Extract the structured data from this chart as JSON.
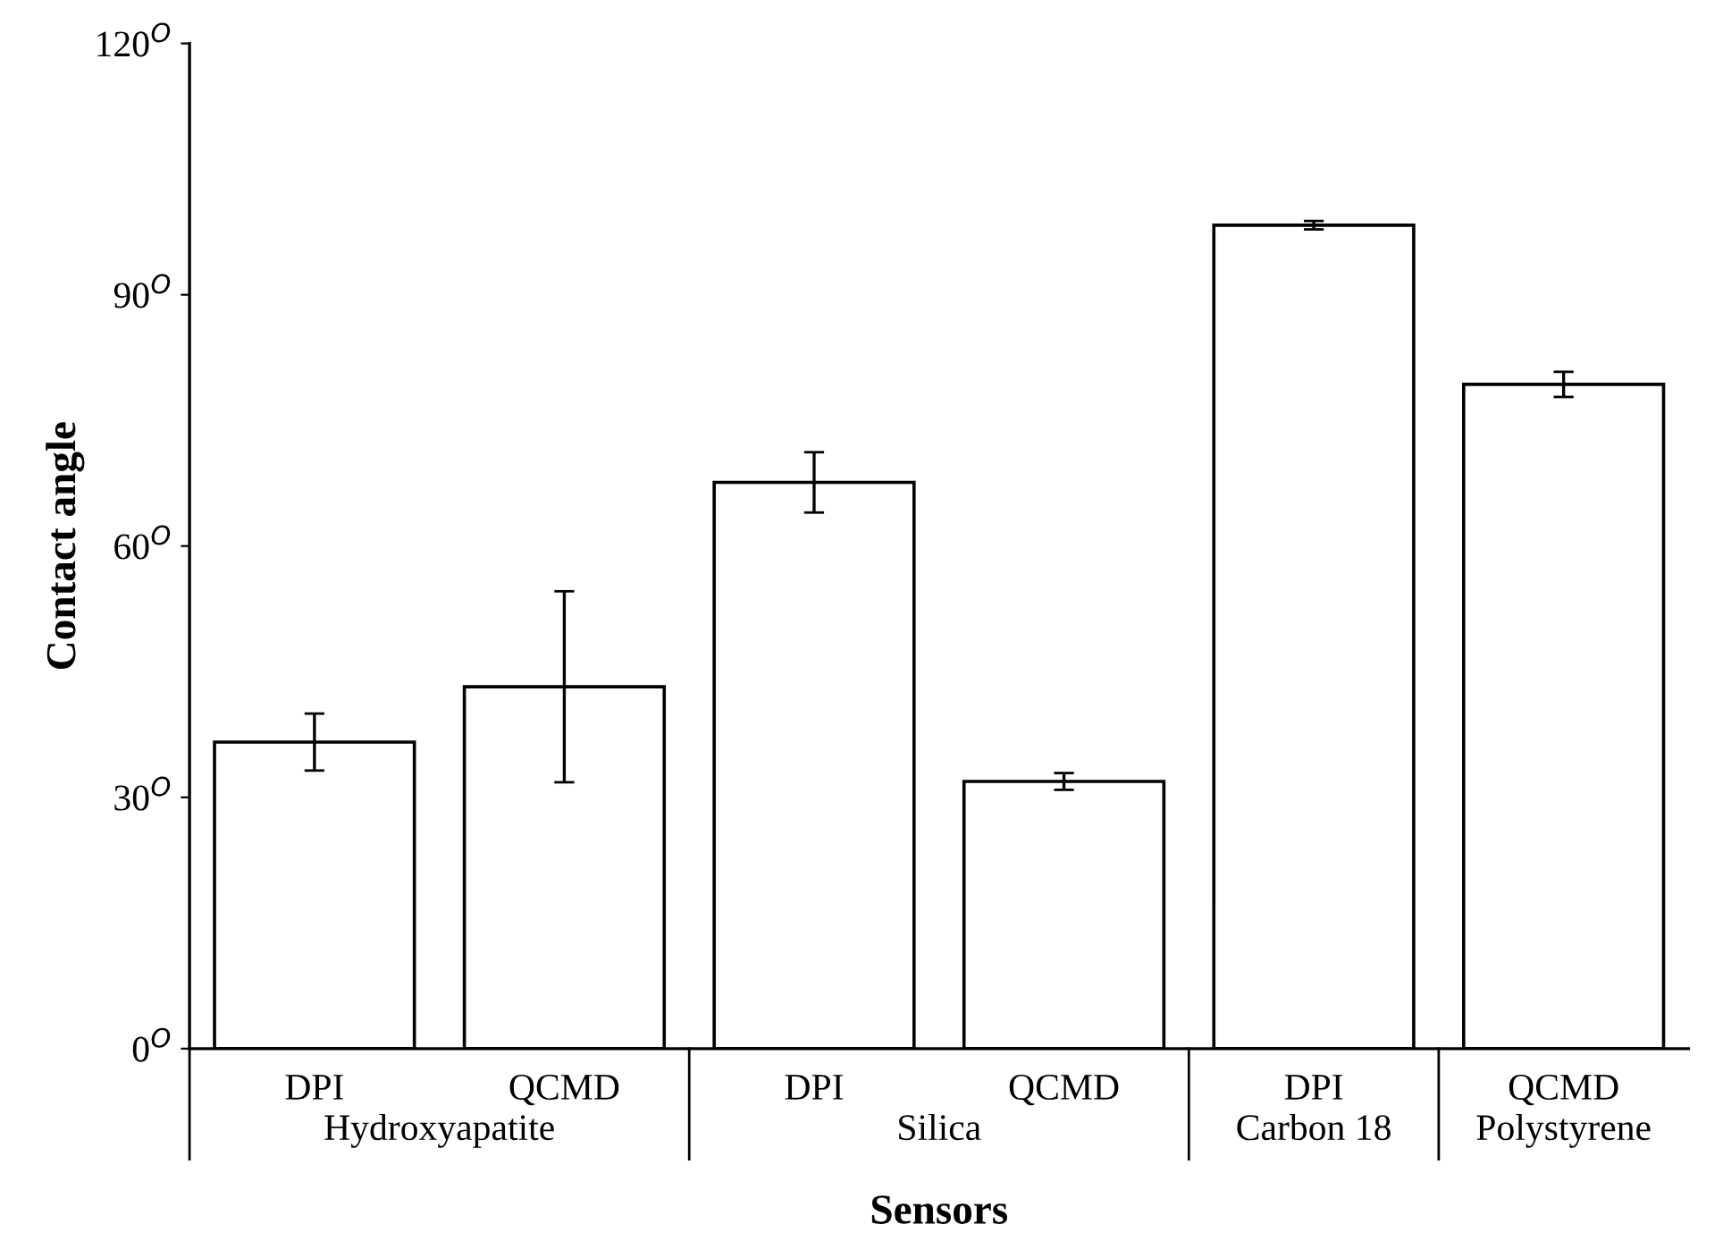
{
  "chart_data": {
    "type": "bar",
    "xlabel": "Sensors",
    "ylabel": "Contact angle",
    "categories": [
      "DPI",
      "QCMD",
      "DPI",
      "QCMD",
      "DPI",
      "QCMD"
    ],
    "values": [
      36.6,
      43.2,
      67.6,
      31.9,
      98.3,
      79.3
    ],
    "errors": [
      3.4,
      11.4,
      3.6,
      1.0,
      0.5,
      1.5
    ],
    "color": "#ffffff",
    "ylim": [
      0,
      120
    ],
    "yticks": [
      {
        "value": 0,
        "label": "0$^{O}$"
      },
      {
        "value": 30,
        "label": "30$^{O}$"
      },
      {
        "value": 60,
        "label": "60$^{O}$"
      },
      {
        "value": 90,
        "label": "90$^{O}$"
      },
      {
        "value": 120,
        "label": "120$^{O}$"
      }
    ],
    "annotations": [
      "Hydroxyapatite",
      "Silica",
      "Carbon 18",
      "Polystyrene"
    ],
    "grid": false,
    "legend": false
  }
}
